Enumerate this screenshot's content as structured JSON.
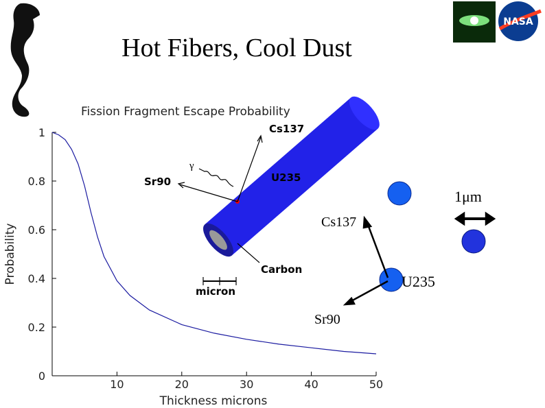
{
  "slide": {
    "title": "Hot Fibers, Cool Dust",
    "logo_text": "NASA",
    "fiber_labels": {
      "cs": "Cs137",
      "sr": "Sr90",
      "u": "U235",
      "gamma": "γ",
      "carbon": "Carbon",
      "micron": "micron"
    },
    "decay_labels": {
      "scale": "1μm",
      "cs": "Cs137",
      "u": "U235",
      "sr": "Sr90"
    }
  },
  "chart_data": {
    "type": "line",
    "title": "Fission Fragment Escape Probability",
    "x_label": "Thickness microns",
    "y_label": "Probability",
    "x": [
      0,
      1,
      2,
      3,
      4,
      5,
      6,
      7,
      8,
      10,
      12,
      15,
      20,
      25,
      30,
      35,
      40,
      45,
      50
    ],
    "values": [
      1,
      0.99,
      0.97,
      0.93,
      0.87,
      0.78,
      0.67,
      0.57,
      0.49,
      0.39,
      0.33,
      0.27,
      0.21,
      0.175,
      0.15,
      0.13,
      0.115,
      0.1,
      0.09
    ],
    "color": "#1a1aa0",
    "xlim": [
      0,
      50
    ],
    "ylim": [
      0,
      1
    ],
    "xticks": [
      10,
      20,
      30,
      40,
      50
    ],
    "yticks": [
      0,
      0.2,
      0.4,
      0.6,
      0.8,
      1
    ]
  }
}
